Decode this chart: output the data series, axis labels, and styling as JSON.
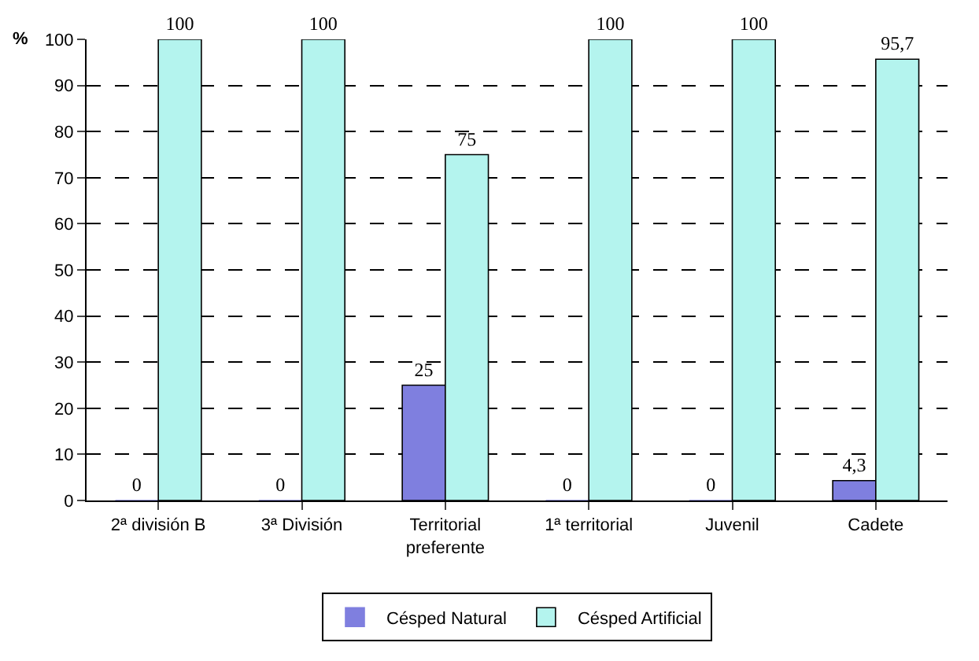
{
  "chart_data": {
    "type": "bar",
    "ylabel": "%",
    "categories": [
      "2ª división B",
      "3ª División",
      "Territorial preferente",
      "1ª territorial",
      "Juvenil",
      "Cadete"
    ],
    "series": [
      {
        "name": "Césped Natural",
        "color": "#7f7fdf",
        "values": [
          0,
          0,
          25,
          0,
          0,
          4.3
        ],
        "value_labels": [
          "0",
          "0",
          "25",
          "0",
          "0",
          "4,3"
        ]
      },
      {
        "name": "Césped Artificial",
        "color": "#b4f4ee",
        "values": [
          100,
          100,
          75,
          100,
          100,
          95.7
        ],
        "value_labels": [
          "100",
          "100",
          "75",
          "100",
          "100",
          "95,7"
        ]
      }
    ],
    "ylim": [
      0,
      100
    ],
    "yticks": [
      0,
      10,
      20,
      30,
      40,
      50,
      60,
      70,
      80,
      90,
      100
    ],
    "grid": "y",
    "legend": "bottom"
  }
}
